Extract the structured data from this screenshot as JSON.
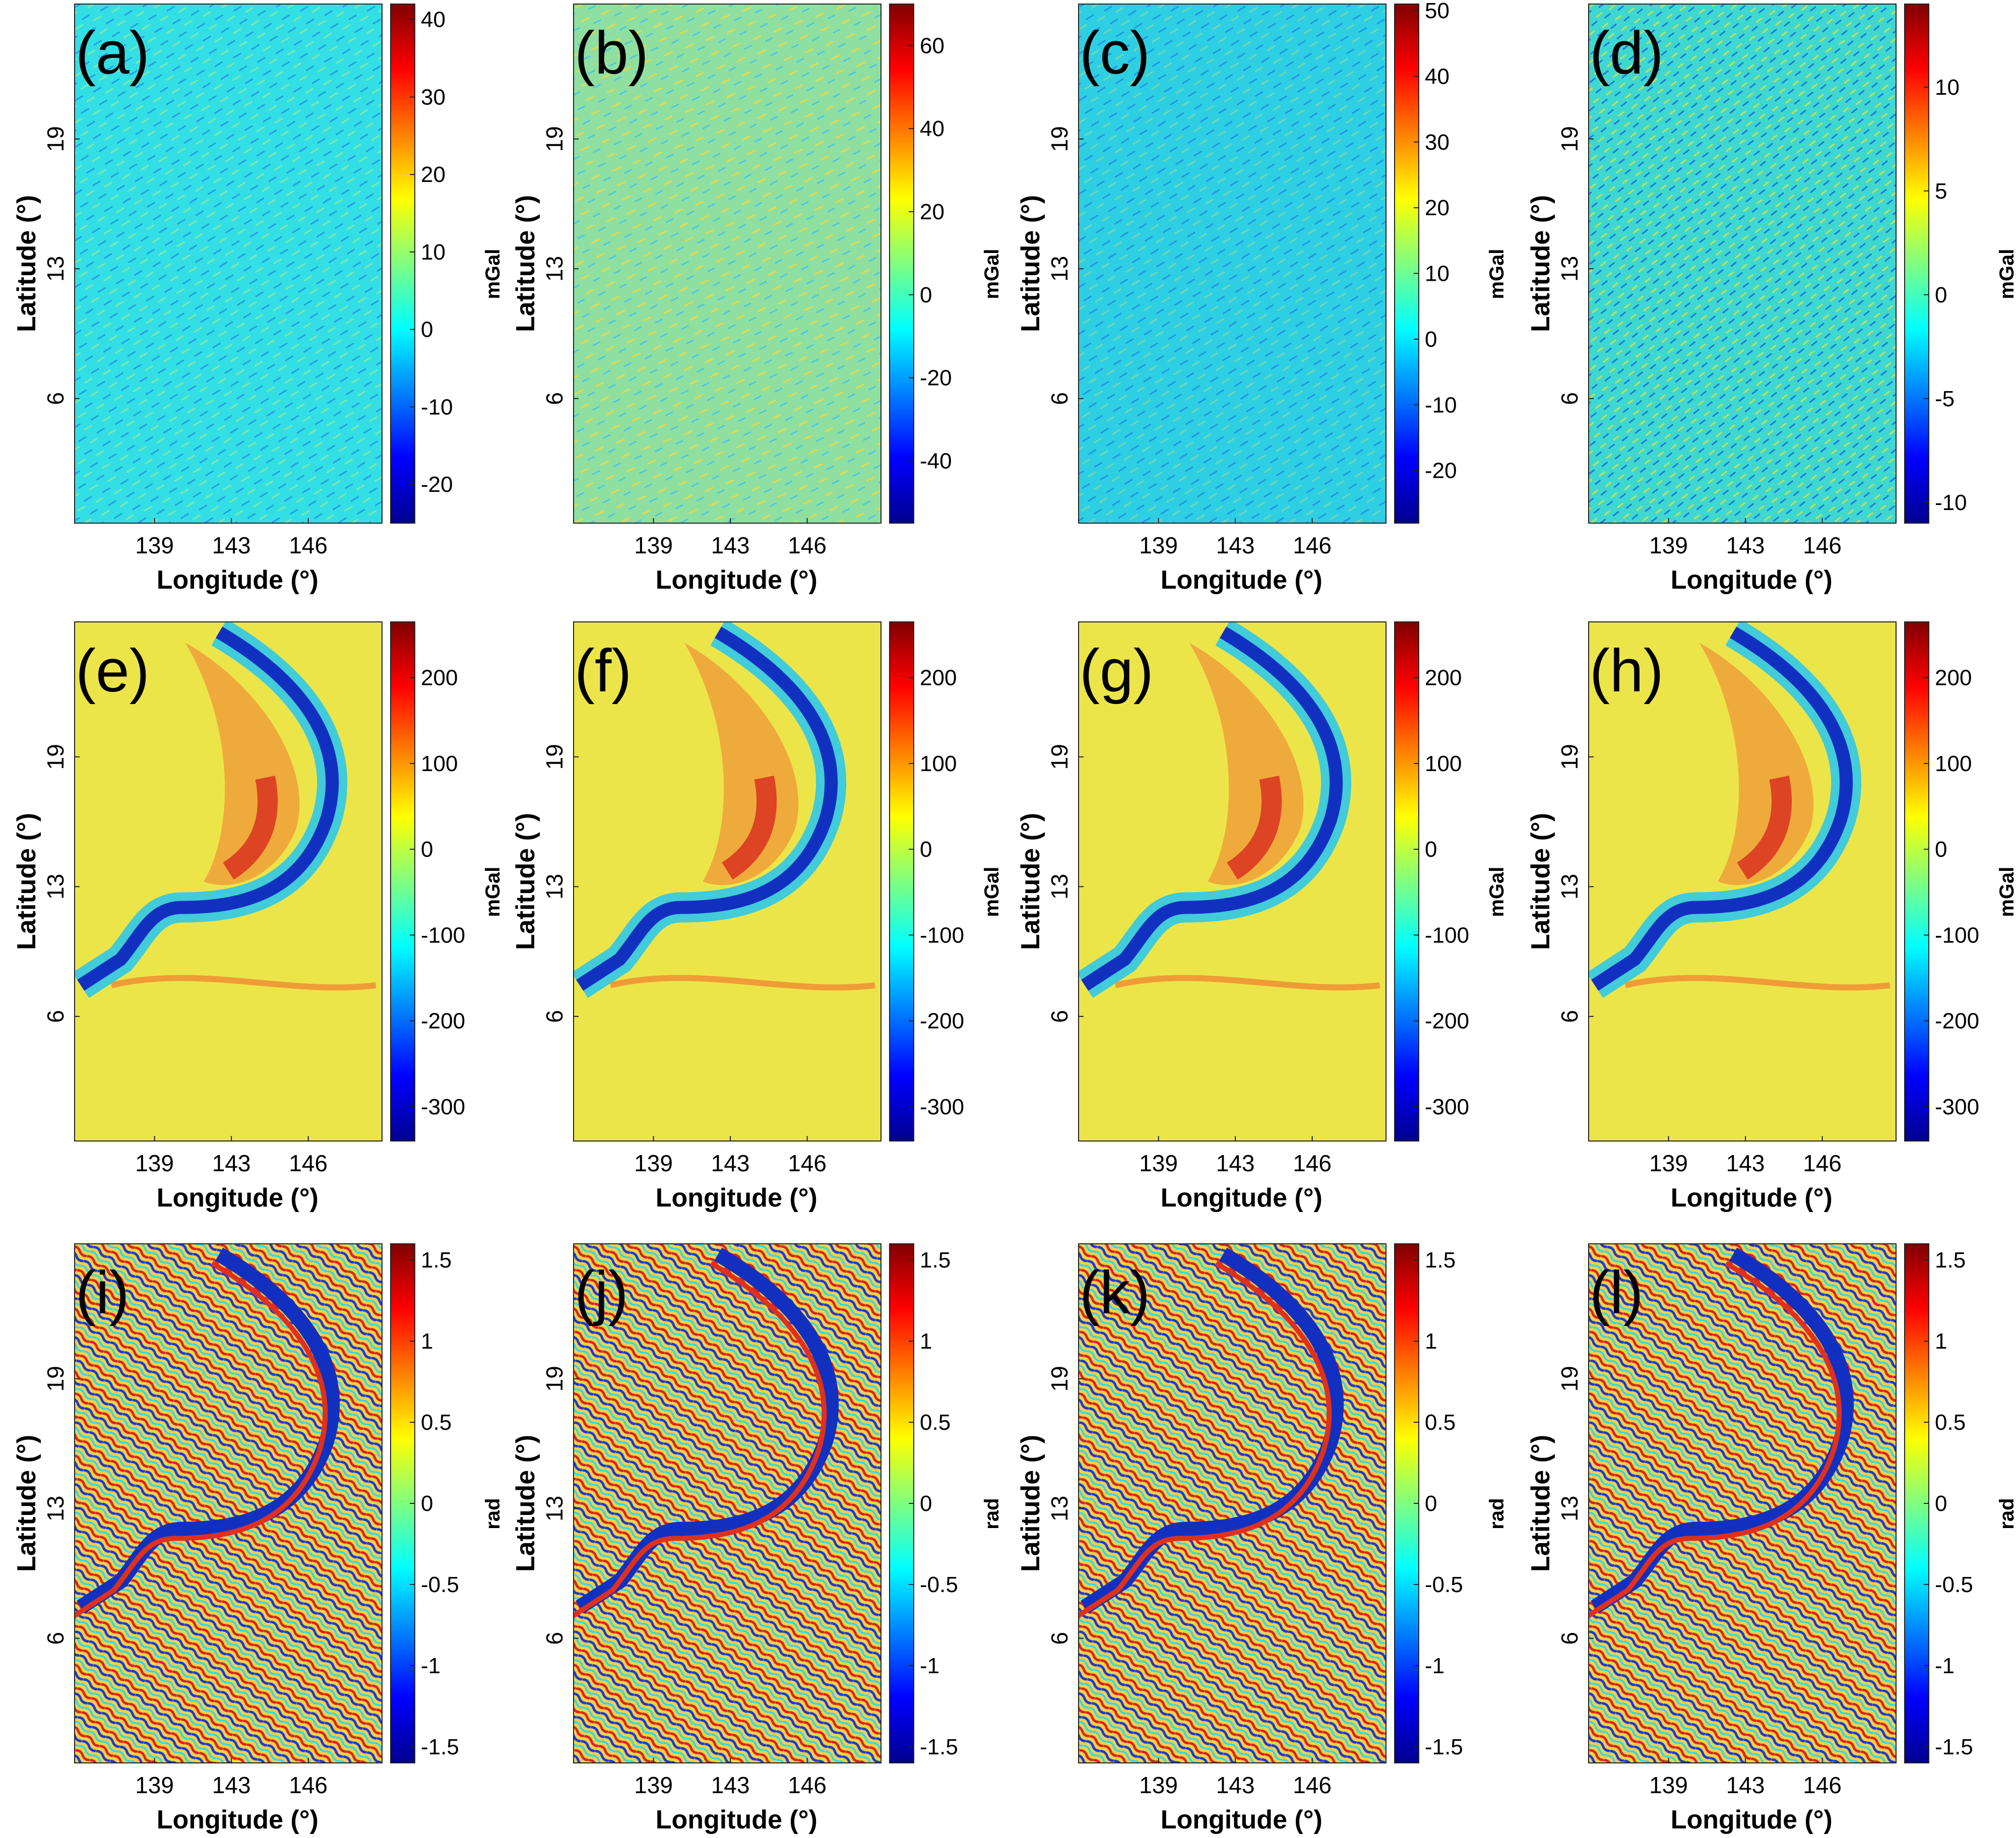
{
  "chart_data": [
    {
      "panel": "(a)",
      "type": "heatmap",
      "map": "noise",
      "unit": "mGal",
      "cbar_ticks": [
        40,
        30,
        20,
        10,
        0,
        -10,
        -20
      ],
      "cbar_range": [
        -25,
        42
      ],
      "xticks": [
        "139",
        "143",
        "146"
      ],
      "yticks": [
        "19",
        "13",
        "6"
      ],
      "xlabel": "Longitude (°)",
      "ylabel": "Latitude (°)"
    },
    {
      "panel": "(b)",
      "type": "heatmap",
      "map": "noise",
      "unit": "mGal",
      "cbar_ticks": [
        60,
        40,
        20,
        0,
        -20,
        -40
      ],
      "cbar_range": [
        -55,
        70
      ],
      "xticks": [
        "139",
        "143",
        "146"
      ],
      "yticks": [
        "19",
        "13",
        "6"
      ],
      "xlabel": "Longitude (°)",
      "ylabel": "Latitude (°)"
    },
    {
      "panel": "(c)",
      "type": "heatmap",
      "map": "noise",
      "unit": "mGal",
      "cbar_ticks": [
        50,
        40,
        30,
        20,
        10,
        0,
        -10,
        -20
      ],
      "cbar_range": [
        -28,
        51
      ],
      "xticks": [
        "139",
        "143",
        "146"
      ],
      "yticks": [
        "19",
        "13",
        "6"
      ],
      "xlabel": "Longitude (°)",
      "ylabel": "Latitude (°)"
    },
    {
      "panel": "(d)",
      "type": "heatmap",
      "map": "noise",
      "unit": "mGal",
      "cbar_ticks": [
        10,
        5,
        0,
        -5,
        -10
      ],
      "cbar_range": [
        -11,
        14
      ],
      "xticks": [
        "139",
        "143",
        "146"
      ],
      "yticks": [
        "19",
        "13",
        "6"
      ],
      "xlabel": "Longitude (°)",
      "ylabel": "Latitude (°)"
    },
    {
      "panel": "(e)",
      "type": "heatmap",
      "map": "gravity",
      "unit": "mGal",
      "cbar_ticks": [
        200,
        100,
        0,
        -100,
        -200,
        -300
      ],
      "cbar_range": [
        -340,
        265
      ],
      "xticks": [
        "139",
        "143",
        "146"
      ],
      "yticks": [
        "19",
        "13",
        "6"
      ],
      "xlabel": "Longitude (°)",
      "ylabel": "Latitude (°)"
    },
    {
      "panel": "(f)",
      "type": "heatmap",
      "map": "gravity",
      "unit": "mGal",
      "cbar_ticks": [
        200,
        100,
        0,
        -100,
        -200,
        -300
      ],
      "cbar_range": [
        -340,
        265
      ],
      "xticks": [
        "139",
        "143",
        "146"
      ],
      "yticks": [
        "19",
        "13",
        "6"
      ],
      "xlabel": "Longitude (°)",
      "ylabel": "Latitude (°)"
    },
    {
      "panel": "(g)",
      "type": "heatmap",
      "map": "gravity",
      "unit": "mGal",
      "cbar_ticks": [
        200,
        100,
        0,
        -100,
        -200,
        -300
      ],
      "cbar_range": [
        -340,
        265
      ],
      "xticks": [
        "139",
        "143",
        "146"
      ],
      "yticks": [
        "19",
        "13",
        "6"
      ],
      "xlabel": "Longitude (°)",
      "ylabel": "Latitude (°)"
    },
    {
      "panel": "(h)",
      "type": "heatmap",
      "map": "gravity",
      "unit": "mGal",
      "cbar_ticks": [
        200,
        100,
        0,
        -100,
        -200,
        -300
      ],
      "cbar_range": [
        -340,
        265
      ],
      "xticks": [
        "139",
        "143",
        "146"
      ],
      "yticks": [
        "19",
        "13",
        "6"
      ],
      "xlabel": "Longitude (°)",
      "ylabel": "Latitude (°)"
    },
    {
      "panel": "(i)",
      "type": "heatmap",
      "map": "phase",
      "unit": "rad",
      "cbar_ticks": [
        "1.5",
        "1",
        "0.5",
        "0",
        "-0.5",
        "-1",
        "-1.5"
      ],
      "cbar_range": [
        -1.6,
        1.6
      ],
      "xticks": [
        "139",
        "143",
        "146"
      ],
      "yticks": [
        "19",
        "13",
        "6"
      ],
      "xlabel": "Longitude (°)",
      "ylabel": "Latitude (°)"
    },
    {
      "panel": "(j)",
      "type": "heatmap",
      "map": "phase",
      "unit": "rad",
      "cbar_ticks": [
        "1.5",
        "1",
        "0.5",
        "0",
        "-0.5",
        "-1",
        "-1.5"
      ],
      "cbar_range": [
        -1.6,
        1.6
      ],
      "xticks": [
        "139",
        "143",
        "146"
      ],
      "yticks": [
        "19",
        "13",
        "6"
      ],
      "xlabel": "Longitude (°)",
      "ylabel": "Latitude (°)"
    },
    {
      "panel": "(k)",
      "type": "heatmap",
      "map": "phase",
      "unit": "rad",
      "cbar_ticks": [
        "1.5",
        "1",
        "0.5",
        "0",
        "-0.5",
        "-1",
        "-1.5"
      ],
      "cbar_range": [
        -1.6,
        1.6
      ],
      "xticks": [
        "139",
        "143",
        "146"
      ],
      "yticks": [
        "19",
        "13",
        "6"
      ],
      "xlabel": "Longitude (°)",
      "ylabel": "Latitude (°)"
    },
    {
      "panel": "(l)",
      "type": "heatmap",
      "map": "phase",
      "unit": "rad",
      "cbar_ticks": [
        "1.5",
        "1",
        "0.5",
        "0",
        "-0.5",
        "-1",
        "-1.5"
      ],
      "cbar_range": [
        -1.6,
        1.6
      ],
      "xticks": [
        "139",
        "143",
        "146"
      ],
      "yticks": [
        "19",
        "13",
        "6"
      ],
      "xlabel": "Longitude (°)",
      "ylabel": "Latitude (°)"
    }
  ],
  "colors": {
    "map_background_noise": "#33dfe4",
    "map_background_noise_b": "#8fe0a0",
    "map_background_gravity": "#ece54a",
    "map_trench": "#1240c8",
    "map_high": "#e0402a"
  }
}
